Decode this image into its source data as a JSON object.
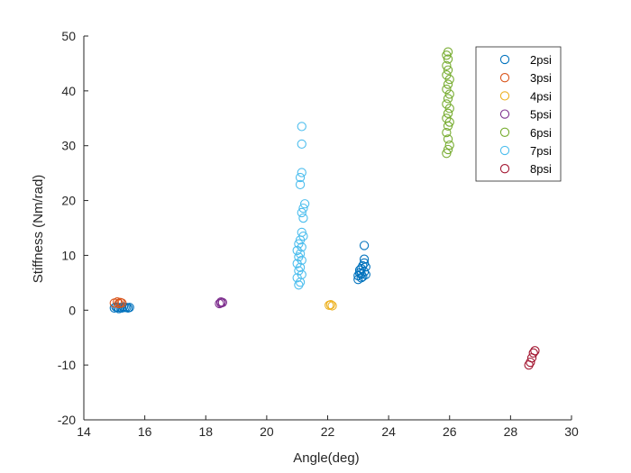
{
  "chart_data": {
    "type": "scatter",
    "title": "",
    "xlabel": "Angle(deg)",
    "ylabel": "Stiffness (Nm/rad)",
    "xlim": [
      14,
      30
    ],
    "ylim": [
      -20,
      50
    ],
    "xticks": [
      "14",
      "16",
      "18",
      "20",
      "22",
      "24",
      "26",
      "28",
      "30"
    ],
    "yticks": [
      "-20",
      "-10",
      "0",
      "10",
      "20",
      "30",
      "40",
      "50"
    ],
    "grid": false,
    "legend_position": "top-right",
    "series": [
      {
        "name": "2psi",
        "color": "#0072BD",
        "points": [
          [
            15.0,
            0.4
          ],
          [
            15.05,
            0.6
          ],
          [
            15.1,
            0.5
          ],
          [
            15.15,
            0.3
          ],
          [
            15.2,
            0.5
          ],
          [
            15.25,
            0.4
          ],
          [
            15.3,
            0.6
          ],
          [
            15.35,
            0.5
          ],
          [
            15.4,
            0.5
          ],
          [
            15.45,
            0.4
          ],
          [
            15.5,
            0.5
          ],
          [
            23.0,
            5.6
          ],
          [
            23.0,
            6.3
          ],
          [
            23.05,
            6.8
          ],
          [
            23.05,
            7.3
          ],
          [
            23.1,
            5.9
          ],
          [
            23.1,
            6.6
          ],
          [
            23.1,
            7.6
          ],
          [
            23.15,
            8.1
          ],
          [
            23.15,
            6.1
          ],
          [
            23.2,
            7.0
          ],
          [
            23.2,
            8.6
          ],
          [
            23.2,
            9.3
          ],
          [
            23.25,
            6.5
          ],
          [
            23.25,
            7.9
          ],
          [
            23.2,
            11.8
          ]
        ]
      },
      {
        "name": "3psi",
        "color": "#D95319",
        "points": [
          [
            15.0,
            1.3
          ],
          [
            15.1,
            1.5
          ],
          [
            15.15,
            1.2
          ],
          [
            15.2,
            1.4
          ],
          [
            15.25,
            1.3
          ]
        ]
      },
      {
        "name": "4psi",
        "color": "#EDB120",
        "points": [
          [
            22.05,
            0.9
          ],
          [
            22.1,
            1.0
          ],
          [
            22.15,
            0.8
          ]
        ]
      },
      {
        "name": "5psi",
        "color": "#7E2F8E",
        "points": [
          [
            18.45,
            1.2
          ],
          [
            18.5,
            1.5
          ],
          [
            18.5,
            1.3
          ],
          [
            18.55,
            1.4
          ]
        ]
      },
      {
        "name": "6psi",
        "color": "#77AC30",
        "points": [
          [
            25.9,
            28.6
          ],
          [
            25.95,
            29.3
          ],
          [
            26.0,
            30.1
          ],
          [
            25.95,
            31.2
          ],
          [
            25.9,
            32.4
          ],
          [
            25.95,
            33.6
          ],
          [
            26.0,
            34.3
          ],
          [
            25.9,
            35.0
          ],
          [
            25.95,
            35.9
          ],
          [
            26.0,
            36.8
          ],
          [
            25.9,
            37.6
          ],
          [
            25.95,
            38.6
          ],
          [
            26.0,
            39.4
          ],
          [
            25.9,
            40.3
          ],
          [
            25.95,
            41.2
          ],
          [
            26.0,
            42.1
          ],
          [
            25.9,
            42.9
          ],
          [
            25.95,
            43.8
          ],
          [
            25.9,
            44.6
          ],
          [
            25.95,
            45.8
          ],
          [
            25.9,
            46.5
          ],
          [
            25.95,
            47.1
          ]
        ]
      },
      {
        "name": "7psi",
        "color": "#4DBEEE",
        "points": [
          [
            21.05,
            4.6
          ],
          [
            21.1,
            5.1
          ],
          [
            21.0,
            5.9
          ],
          [
            21.15,
            6.5
          ],
          [
            21.05,
            7.2
          ],
          [
            21.1,
            7.8
          ],
          [
            21.0,
            8.5
          ],
          [
            21.15,
            9.1
          ],
          [
            21.05,
            9.7
          ],
          [
            21.1,
            10.3
          ],
          [
            21.0,
            10.9
          ],
          [
            21.15,
            11.5
          ],
          [
            21.05,
            12.1
          ],
          [
            21.1,
            12.8
          ],
          [
            21.2,
            13.5
          ],
          [
            21.15,
            14.2
          ],
          [
            21.2,
            16.8
          ],
          [
            21.15,
            17.8
          ],
          [
            21.2,
            18.6
          ],
          [
            21.25,
            19.4
          ],
          [
            21.1,
            22.9
          ],
          [
            21.1,
            24.2
          ],
          [
            21.15,
            25.1
          ],
          [
            21.15,
            30.3
          ],
          [
            21.15,
            33.5
          ]
        ]
      },
      {
        "name": "8psi",
        "color": "#A2142F",
        "points": [
          [
            28.6,
            -10.0
          ],
          [
            28.65,
            -9.5
          ],
          [
            28.7,
            -8.7
          ],
          [
            28.75,
            -7.8
          ],
          [
            28.8,
            -7.4
          ]
        ]
      }
    ]
  }
}
